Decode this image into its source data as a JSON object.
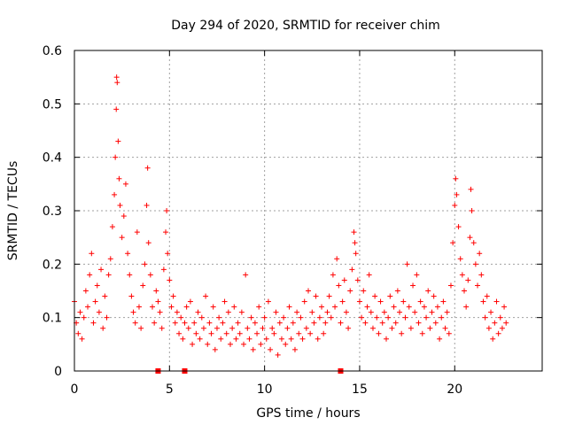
{
  "chart_data": {
    "type": "scatter",
    "title": "Day 294 of 2020, SRMTID for receiver chim",
    "xlabel": "GPS time / hours",
    "ylabel": "SRMTID / TECUs",
    "xlim": [
      0,
      24.6
    ],
    "ylim": [
      0,
      0.6
    ],
    "x_ticks": [
      0,
      5,
      10,
      15,
      20
    ],
    "x_tick_labels": [
      "0",
      "5",
      "10",
      "15",
      "20"
    ],
    "y_ticks": [
      0,
      0.1,
      0.2,
      0.3,
      0.4,
      0.5,
      0.6
    ],
    "y_tick_labels": [
      "0",
      "0.1",
      "0.2",
      "0.3",
      "0.4",
      "0.5",
      "0.6"
    ],
    "grid": true,
    "color": "#ff0000",
    "marker": "plus",
    "series": [
      {
        "name": "SRMTID",
        "points": [
          [
            0.0,
            0.13
          ],
          [
            0.1,
            0.09
          ],
          [
            0.2,
            0.07
          ],
          [
            0.3,
            0.11
          ],
          [
            0.4,
            0.06
          ],
          [
            0.5,
            0.1
          ],
          [
            0.6,
            0.15
          ],
          [
            0.7,
            0.12
          ],
          [
            0.8,
            0.18
          ],
          [
            0.9,
            0.22
          ],
          [
            1.0,
            0.09
          ],
          [
            1.1,
            0.13
          ],
          [
            1.2,
            0.16
          ],
          [
            1.3,
            0.11
          ],
          [
            1.4,
            0.19
          ],
          [
            1.5,
            0.08
          ],
          [
            1.6,
            0.14
          ],
          [
            1.7,
            0.1
          ],
          [
            1.8,
            0.18
          ],
          [
            1.9,
            0.21
          ],
          [
            2.0,
            0.27
          ],
          [
            2.1,
            0.33
          ],
          [
            2.15,
            0.4
          ],
          [
            2.2,
            0.49
          ],
          [
            2.22,
            0.55
          ],
          [
            2.25,
            0.54
          ],
          [
            2.3,
            0.43
          ],
          [
            2.35,
            0.36
          ],
          [
            2.4,
            0.31
          ],
          [
            2.5,
            0.25
          ],
          [
            2.6,
            0.29
          ],
          [
            2.7,
            0.35
          ],
          [
            2.8,
            0.22
          ],
          [
            2.9,
            0.18
          ],
          [
            3.0,
            0.14
          ],
          [
            3.1,
            0.11
          ],
          [
            3.2,
            0.09
          ],
          [
            3.3,
            0.26
          ],
          [
            3.4,
            0.12
          ],
          [
            3.5,
            0.08
          ],
          [
            3.6,
            0.16
          ],
          [
            3.7,
            0.2
          ],
          [
            3.8,
            0.31
          ],
          [
            3.85,
            0.38
          ],
          [
            3.9,
            0.24
          ],
          [
            4.0,
            0.18
          ],
          [
            4.1,
            0.12
          ],
          [
            4.2,
            0.09
          ],
          [
            4.3,
            0.15
          ],
          [
            4.4,
            0.13
          ],
          [
            4.5,
            0.11
          ],
          [
            4.6,
            0.08
          ],
          [
            4.7,
            0.19
          ],
          [
            4.8,
            0.26
          ],
          [
            4.85,
            0.3
          ],
          [
            4.9,
            0.22
          ],
          [
            5.0,
            0.17
          ],
          [
            5.1,
            0.12
          ],
          [
            5.2,
            0.14
          ],
          [
            5.3,
            0.09
          ],
          [
            5.4,
            0.11
          ],
          [
            5.5,
            0.07
          ],
          [
            5.6,
            0.1
          ],
          [
            5.7,
            0.06
          ],
          [
            5.8,
            0.09
          ],
          [
            5.9,
            0.12
          ],
          [
            6.0,
            0.08
          ],
          [
            6.1,
            0.13
          ],
          [
            6.2,
            0.05
          ],
          [
            6.3,
            0.09
          ],
          [
            6.4,
            0.07
          ],
          [
            6.5,
            0.11
          ],
          [
            6.6,
            0.06
          ],
          [
            6.7,
            0.1
          ],
          [
            6.8,
            0.08
          ],
          [
            6.9,
            0.14
          ],
          [
            7.0,
            0.05
          ],
          [
            7.1,
            0.09
          ],
          [
            7.2,
            0.07
          ],
          [
            7.3,
            0.12
          ],
          [
            7.4,
            0.04
          ],
          [
            7.5,
            0.08
          ],
          [
            7.6,
            0.1
          ],
          [
            7.7,
            0.06
          ],
          [
            7.8,
            0.09
          ],
          [
            7.9,
            0.13
          ],
          [
            8.0,
            0.07
          ],
          [
            8.1,
            0.11
          ],
          [
            8.2,
            0.05
          ],
          [
            8.3,
            0.08
          ],
          [
            8.4,
            0.12
          ],
          [
            8.5,
            0.06
          ],
          [
            8.6,
            0.09
          ],
          [
            8.7,
            0.07
          ],
          [
            8.8,
            0.11
          ],
          [
            8.9,
            0.05
          ],
          [
            9.0,
            0.18
          ],
          [
            9.1,
            0.08
          ],
          [
            9.2,
            0.06
          ],
          [
            9.3,
            0.1
          ],
          [
            9.4,
            0.04
          ],
          [
            9.5,
            0.09
          ],
          [
            9.6,
            0.07
          ],
          [
            9.7,
            0.12
          ],
          [
            9.8,
            0.05
          ],
          [
            9.9,
            0.08
          ],
          [
            10.0,
            0.1
          ],
          [
            10.1,
            0.06
          ],
          [
            10.2,
            0.13
          ],
          [
            10.3,
            0.04
          ],
          [
            10.4,
            0.08
          ],
          [
            10.5,
            0.07
          ],
          [
            10.6,
            0.11
          ],
          [
            10.7,
            0.03
          ],
          [
            10.8,
            0.09
          ],
          [
            10.9,
            0.06
          ],
          [
            11.0,
            0.1
          ],
          [
            11.1,
            0.05
          ],
          [
            11.2,
            0.08
          ],
          [
            11.3,
            0.12
          ],
          [
            11.4,
            0.06
          ],
          [
            11.5,
            0.09
          ],
          [
            11.6,
            0.04
          ],
          [
            11.7,
            0.11
          ],
          [
            11.8,
            0.07
          ],
          [
            11.9,
            0.1
          ],
          [
            12.0,
            0.06
          ],
          [
            12.1,
            0.13
          ],
          [
            12.2,
            0.08
          ],
          [
            12.3,
            0.15
          ],
          [
            12.4,
            0.07
          ],
          [
            12.5,
            0.11
          ],
          [
            12.6,
            0.09
          ],
          [
            12.7,
            0.14
          ],
          [
            12.8,
            0.06
          ],
          [
            12.9,
            0.1
          ],
          [
            13.0,
            0.12
          ],
          [
            13.1,
            0.07
          ],
          [
            13.2,
            0.09
          ],
          [
            13.3,
            0.11
          ],
          [
            13.4,
            0.14
          ],
          [
            13.5,
            0.1
          ],
          [
            13.6,
            0.18
          ],
          [
            13.7,
            0.12
          ],
          [
            13.8,
            0.21
          ],
          [
            13.9,
            0.16
          ],
          [
            14.0,
            0.09
          ],
          [
            14.1,
            0.13
          ],
          [
            14.2,
            0.17
          ],
          [
            14.3,
            0.11
          ],
          [
            14.4,
            0.08
          ],
          [
            14.5,
            0.15
          ],
          [
            14.6,
            0.19
          ],
          [
            14.7,
            0.26
          ],
          [
            14.75,
            0.24
          ],
          [
            14.8,
            0.22
          ],
          [
            14.9,
            0.17
          ],
          [
            15.0,
            0.13
          ],
          [
            15.1,
            0.1
          ],
          [
            15.2,
            0.15
          ],
          [
            15.3,
            0.09
          ],
          [
            15.4,
            0.12
          ],
          [
            15.5,
            0.18
          ],
          [
            15.6,
            0.11
          ],
          [
            15.7,
            0.08
          ],
          [
            15.8,
            0.14
          ],
          [
            15.9,
            0.1
          ],
          [
            16.0,
            0.07
          ],
          [
            16.1,
            0.13
          ],
          [
            16.2,
            0.09
          ],
          [
            16.3,
            0.11
          ],
          [
            16.4,
            0.06
          ],
          [
            16.5,
            0.1
          ],
          [
            16.6,
            0.14
          ],
          [
            16.7,
            0.08
          ],
          [
            16.8,
            0.12
          ],
          [
            16.9,
            0.09
          ],
          [
            17.0,
            0.15
          ],
          [
            17.1,
            0.11
          ],
          [
            17.2,
            0.07
          ],
          [
            17.3,
            0.13
          ],
          [
            17.4,
            0.1
          ],
          [
            17.5,
            0.2
          ],
          [
            17.6,
            0.12
          ],
          [
            17.7,
            0.08
          ],
          [
            17.8,
            0.16
          ],
          [
            17.9,
            0.11
          ],
          [
            18.0,
            0.18
          ],
          [
            18.1,
            0.09
          ],
          [
            18.2,
            0.13
          ],
          [
            18.3,
            0.07
          ],
          [
            18.4,
            0.12
          ],
          [
            18.5,
            0.1
          ],
          [
            18.6,
            0.15
          ],
          [
            18.7,
            0.08
          ],
          [
            18.8,
            0.11
          ],
          [
            18.9,
            0.14
          ],
          [
            19.0,
            0.09
          ],
          [
            19.1,
            0.12
          ],
          [
            19.2,
            0.06
          ],
          [
            19.3,
            0.1
          ],
          [
            19.4,
            0.13
          ],
          [
            19.5,
            0.08
          ],
          [
            19.6,
            0.11
          ],
          [
            19.7,
            0.07
          ],
          [
            19.8,
            0.16
          ],
          [
            19.9,
            0.24
          ],
          [
            20.0,
            0.31
          ],
          [
            20.05,
            0.36
          ],
          [
            20.1,
            0.33
          ],
          [
            20.2,
            0.27
          ],
          [
            20.3,
            0.21
          ],
          [
            20.4,
            0.18
          ],
          [
            20.5,
            0.15
          ],
          [
            20.6,
            0.12
          ],
          [
            20.7,
            0.17
          ],
          [
            20.8,
            0.25
          ],
          [
            20.85,
            0.34
          ],
          [
            20.9,
            0.3
          ],
          [
            21.0,
            0.24
          ],
          [
            21.1,
            0.2
          ],
          [
            21.2,
            0.16
          ],
          [
            21.3,
            0.22
          ],
          [
            21.4,
            0.18
          ],
          [
            21.5,
            0.13
          ],
          [
            21.6,
            0.1
          ],
          [
            21.7,
            0.14
          ],
          [
            21.8,
            0.08
          ],
          [
            21.9,
            0.11
          ],
          [
            22.0,
            0.06
          ],
          [
            22.1,
            0.09
          ],
          [
            22.2,
            0.13
          ],
          [
            22.3,
            0.07
          ],
          [
            22.4,
            0.1
          ],
          [
            22.5,
            0.08
          ],
          [
            22.6,
            0.12
          ],
          [
            22.7,
            0.09
          ]
        ]
      }
    ],
    "markers_at_zero": [
      4.4,
      5.8,
      14.0
    ]
  }
}
